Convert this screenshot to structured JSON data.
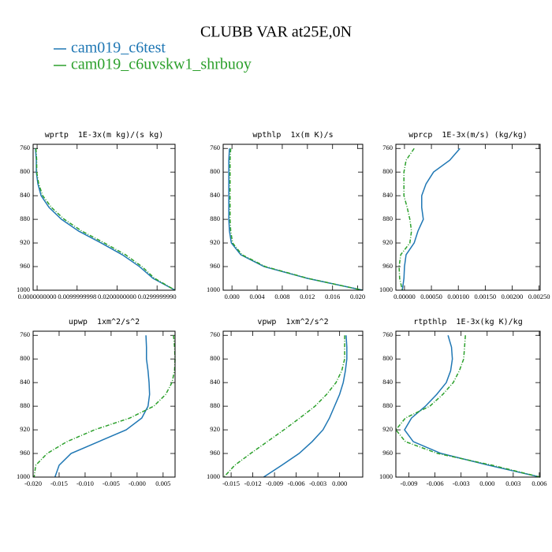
{
  "title": "CLUBB VAR at25E,0N",
  "chart_data": [
    {
      "type": "line",
      "title": "wprtp  1E-3x(m kg)/(s kg)",
      "y": [
        760,
        780,
        800,
        820,
        840,
        860,
        880,
        900,
        920,
        940,
        960,
        980,
        1000
      ],
      "series": [
        {
          "name": "cam019_c6test",
          "color": "#1f77b4",
          "style": "solid",
          "values": [
            -0.0004,
            -0.0002,
            -0.0002,
            0.0002,
            0.001,
            0.003,
            0.0061,
            0.0104,
            0.016,
            0.0213,
            0.0256,
            0.029,
            0.0345
          ]
        },
        {
          "name": "cam019_c6uvskw1_shrbuoy",
          "color": "#2ca02c",
          "style": "dashdot",
          "values": [
            -0.0003,
            -0.0001,
            -0.0001,
            0.0004,
            0.0014,
            0.0036,
            0.0068,
            0.0112,
            0.0168,
            0.0221,
            0.0262,
            0.0294,
            0.0345
          ]
        }
      ],
      "xlim": [
        -0.001,
        0.0345
      ],
      "xticks": [
        {
          "value": 0,
          "label": "0.0000000000"
        },
        {
          "value": 0.01,
          "label": "0.0099999998"
        },
        {
          "value": 0.02,
          "label": "0.0200000000"
        },
        {
          "value": 0.03,
          "label": "0.0299999990"
        }
      ],
      "ylim": [
        1000,
        753
      ],
      "yticks": [
        760,
        800,
        840,
        880,
        920,
        960,
        1000
      ]
    },
    {
      "type": "line",
      "title": "wpthlp  1x(m K)/s",
      "y": [
        760,
        780,
        800,
        820,
        840,
        860,
        880,
        900,
        920,
        940,
        960,
        980,
        1000
      ],
      "series": [
        {
          "name": "cam019_c6test",
          "color": "#1f77b4",
          "style": "solid",
          "values": [
            -0.0004,
            -0.0005,
            -0.0005,
            -0.0005,
            -0.0005,
            -0.0005,
            -0.0005,
            -0.0004,
            -0.0001,
            0.0014,
            0.0051,
            0.012,
            0.0208
          ]
        },
        {
          "name": "cam019_c6uvskw1_shrbuoy",
          "color": "#2ca02c",
          "style": "dashdot",
          "values": [
            -0.0002,
            -0.0003,
            -0.0003,
            -0.0003,
            -0.0003,
            -0.0003,
            -0.0003,
            -0.0002,
            0.0001,
            0.0016,
            0.0053,
            0.0121,
            0.0208
          ]
        }
      ],
      "xlim": [
        -0.0014,
        0.0208
      ],
      "xticks": [
        {
          "value": 0,
          "label": "0.000"
        },
        {
          "value": 0.004,
          "label": "0.004"
        },
        {
          "value": 0.008,
          "label": "0.008"
        },
        {
          "value": 0.012,
          "label": "0.012"
        },
        {
          "value": 0.016,
          "label": "0.016"
        },
        {
          "value": 0.02,
          "label": "0.020"
        }
      ],
      "ylim": [
        1000,
        753
      ],
      "yticks": [
        760,
        800,
        840,
        880,
        920,
        960,
        1000
      ]
    },
    {
      "type": "line",
      "title": "wprcp  1E-3x(m/s) (kg/kg)",
      "y": [
        760,
        780,
        800,
        820,
        840,
        860,
        880,
        900,
        920,
        940,
        960,
        980,
        1000
      ],
      "series": [
        {
          "name": "cam019_c6test",
          "color": "#1f77b4",
          "style": "solid",
          "values": [
            0.00103,
            0.00084,
            0.00054,
            0.0004,
            0.00032,
            0.00032,
            0.00035,
            0.00025,
            0.00018,
            3e-05,
            0,
            -1e-05,
            -4e-05
          ]
        },
        {
          "name": "cam019_c6uvskw1_shrbuoy",
          "color": "#2ca02c",
          "style": "dashdot",
          "values": [
            0.00018,
            3e-05,
            -1e-05,
            -1e-05,
            -1e-05,
            5e-05,
            0.0001,
            0.00013,
            0.0001,
            -7e-05,
            -0.0001,
            -9e-05,
            -4e-05
          ]
        }
      ],
      "xlim": [
        -0.00016,
        0.00252
      ],
      "xticks": [
        {
          "value": 0,
          "label": "0.00000"
        },
        {
          "value": 0.0005,
          "label": "0.00050"
        },
        {
          "value": 0.001,
          "label": "0.00100"
        },
        {
          "value": 0.0015,
          "label": "0.00150"
        },
        {
          "value": 0.002,
          "label": "0.00200"
        },
        {
          "value": 0.0025,
          "label": "0.00250"
        }
      ],
      "ylim": [
        1000,
        753
      ],
      "yticks": [
        760,
        800,
        840,
        880,
        920,
        960,
        1000
      ]
    },
    {
      "type": "line",
      "title": "upwp  1xm^2/s^2",
      "y": [
        760,
        780,
        800,
        820,
        840,
        860,
        880,
        900,
        920,
        940,
        960,
        980,
        1000
      ],
      "series": [
        {
          "name": "cam019_c6test",
          "color": "#1f77b4",
          "style": "solid",
          "values": [
            0.0017,
            0.0018,
            0.0018,
            0.0021,
            0.0023,
            0.0024,
            0.0021,
            0.0009,
            -0.0021,
            -0.0074,
            -0.0127,
            -0.015,
            -0.0158
          ]
        },
        {
          "name": "cam019_c6uvskw1_shrbuoy",
          "color": "#2ca02c",
          "style": "dashdot",
          "values": [
            0.007,
            0.0072,
            0.0073,
            0.0072,
            0.0067,
            0.0055,
            0.0032,
            -0.0014,
            -0.0082,
            -0.0135,
            -0.0173,
            -0.0195,
            -0.0198
          ]
        }
      ],
      "xlim": [
        -0.02,
        0.0073
      ],
      "xticks": [
        {
          "value": -0.02,
          "label": "-0.020"
        },
        {
          "value": -0.015,
          "label": "-0.015"
        },
        {
          "value": -0.01,
          "label": "-0.010"
        },
        {
          "value": -0.005,
          "label": "-0.005"
        },
        {
          "value": 0,
          "label": "-0.000"
        },
        {
          "value": 0.005,
          "label": "0.005"
        }
      ],
      "ylim": [
        1000,
        753
      ],
      "yticks": [
        760,
        800,
        840,
        880,
        920,
        960,
        1000
      ]
    },
    {
      "type": "line",
      "title": "vpwp  1xm^2/s^2",
      "y": [
        760,
        780,
        800,
        820,
        840,
        860,
        880,
        900,
        920,
        940,
        960,
        980,
        1000
      ],
      "series": [
        {
          "name": "cam019_c6test",
          "color": "#1f77b4",
          "style": "solid",
          "values": [
            0.0009,
            0.001,
            0.001,
            0.0008,
            0.0005,
            0,
            -0.0007,
            -0.0014,
            -0.0023,
            -0.0038,
            -0.0056,
            -0.008,
            -0.0105
          ]
        },
        {
          "name": "cam019_c6uvskw1_shrbuoy",
          "color": "#2ca02c",
          "style": "dashdot",
          "values": [
            0.0007,
            0.0007,
            0.0007,
            0.0003,
            -0.0005,
            -0.0018,
            -0.0034,
            -0.0055,
            -0.0077,
            -0.01,
            -0.0123,
            -0.0145,
            -0.016
          ]
        }
      ],
      "xlim": [
        -0.0161,
        0.0032
      ],
      "xticks": [
        {
          "value": -0.015,
          "label": "-0.015"
        },
        {
          "value": -0.012,
          "label": "-0.012"
        },
        {
          "value": -0.009,
          "label": "-0.009"
        },
        {
          "value": -0.006,
          "label": "-0.006"
        },
        {
          "value": -0.003,
          "label": "-0.003"
        },
        {
          "value": 0,
          "label": "0.000"
        }
      ],
      "ylim": [
        1000,
        753
      ],
      "yticks": [
        760,
        800,
        840,
        880,
        920,
        960,
        1000
      ]
    },
    {
      "type": "line",
      "title": "rtpthlp  1E-3x(kg K)/kg",
      "y": [
        760,
        780,
        800,
        820,
        840,
        860,
        880,
        900,
        920,
        940,
        960,
        980,
        1000
      ],
      "series": [
        {
          "name": "cam019_c6test",
          "color": "#1f77b4",
          "style": "solid",
          "values": [
            -0.0045,
            -0.0041,
            -0.004,
            -0.0042,
            -0.0047,
            -0.0058,
            -0.0071,
            -0.0087,
            -0.0095,
            -0.0085,
            -0.0053,
            0.0002,
            0.0061
          ]
        },
        {
          "name": "cam019_c6uvskw1_shrbuoy",
          "color": "#2ca02c",
          "style": "dashdot",
          "values": [
            -0.0025,
            -0.0026,
            -0.0027,
            -0.0032,
            -0.0039,
            -0.0051,
            -0.0066,
            -0.0094,
            -0.0105,
            -0.0094,
            -0.0057,
            0.0006,
            0.0061
          ]
        }
      ],
      "xlim": [
        -0.0105,
        0.0061
      ],
      "xticks": [
        {
          "value": -0.009,
          "label": "-0.009"
        },
        {
          "value": -0.006,
          "label": "-0.006"
        },
        {
          "value": -0.003,
          "label": "-0.003"
        },
        {
          "value": 0,
          "label": "0.000"
        },
        {
          "value": 0.003,
          "label": "0.003"
        },
        {
          "value": 0.006,
          "label": "0.006"
        }
      ],
      "ylim": [
        1000,
        753
      ],
      "yticks": [
        760,
        800,
        840,
        880,
        920,
        960,
        1000
      ]
    }
  ]
}
